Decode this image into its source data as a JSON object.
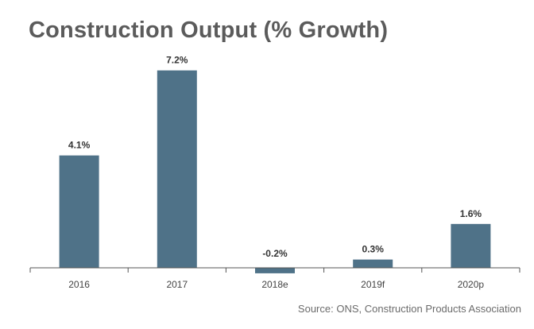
{
  "chart_data": {
    "type": "bar",
    "title": "Construction Output (% Growth)",
    "categories": [
      "2016",
      "2017",
      "2018e",
      "2019f",
      "2020p"
    ],
    "values": [
      4.1,
      7.2,
      -0.2,
      0.3,
      1.6
    ],
    "data_labels": [
      "4.1%",
      "7.2%",
      "-0.2%",
      "0.3%",
      "1.6%"
    ],
    "xlabel": "",
    "ylabel": "",
    "ylim": [
      -0.5,
      7.5
    ],
    "grid": false,
    "legend": "none",
    "bar_color": "#4f7288",
    "source": "Source: ONS, Construction Products Association"
  }
}
